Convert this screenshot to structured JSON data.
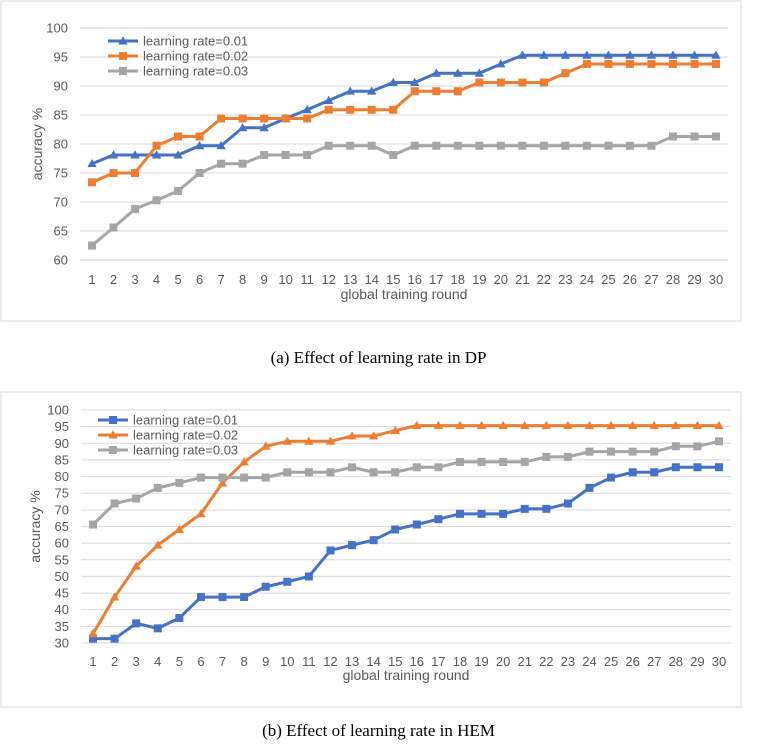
{
  "chart_data": [
    {
      "id": "a",
      "type": "line",
      "caption": "(a)  Effect of learning rate in DP",
      "xlabel": "global training round",
      "ylabel": "accuracy %",
      "ylim": [
        60,
        100
      ],
      "yticks": [
        60,
        65,
        70,
        75,
        80,
        85,
        90,
        95,
        100
      ],
      "categories": [
        "1",
        "2",
        "3",
        "4",
        "5",
        "6",
        "7",
        "8",
        "9",
        "10",
        "11",
        "12",
        "13",
        "14",
        "15",
        "16",
        "17",
        "18",
        "19",
        "20",
        "21",
        "22",
        "23",
        "24",
        "25",
        "26",
        "27",
        "28",
        "29",
        "30"
      ],
      "legend_position": "top-left",
      "grid": "horizontal",
      "series": [
        {
          "name": "learning rate=0.01",
          "color": "#4472C4",
          "marker": "triangle",
          "values": [
            76.6,
            78.1,
            78.1,
            78.1,
            78.1,
            79.7,
            79.7,
            82.8,
            82.8,
            84.4,
            85.9,
            87.5,
            89.1,
            89.1,
            90.6,
            90.6,
            92.2,
            92.2,
            92.2,
            93.8,
            95.3,
            95.3,
            95.3,
            95.3,
            95.3,
            95.3,
            95.3,
            95.3,
            95.3,
            95.3
          ]
        },
        {
          "name": "learning rate=0.02",
          "color": "#ED7D31",
          "marker": "square",
          "values": [
            73.4,
            75.0,
            75.0,
            79.7,
            81.3,
            81.3,
            84.4,
            84.4,
            84.4,
            84.4,
            84.4,
            85.9,
            85.9,
            85.9,
            85.9,
            89.1,
            89.1,
            89.1,
            90.6,
            90.6,
            90.6,
            90.6,
            92.2,
            93.8,
            93.8,
            93.8,
            93.8,
            93.8,
            93.8,
            93.8
          ]
        },
        {
          "name": "learning rate=0.03",
          "color": "#A5A5A5",
          "marker": "square",
          "values": [
            62.5,
            65.6,
            68.8,
            70.3,
            71.9,
            75.0,
            76.6,
            76.6,
            78.1,
            78.1,
            78.1,
            79.7,
            79.7,
            79.7,
            78.1,
            79.7,
            79.7,
            79.7,
            79.7,
            79.7,
            79.7,
            79.7,
            79.7,
            79.7,
            79.7,
            79.7,
            79.7,
            81.3,
            81.3,
            81.3
          ]
        }
      ]
    },
    {
      "id": "b",
      "type": "line",
      "caption": "(b) Effect of learning rate in HEM",
      "xlabel": "global training  round",
      "ylabel": "accuracy %",
      "ylim": [
        30,
        100
      ],
      "yticks": [
        30,
        35,
        40,
        45,
        50,
        55,
        60,
        65,
        70,
        75,
        80,
        85,
        90,
        95,
        100
      ],
      "categories": [
        "1",
        "2",
        "3",
        "4",
        "5",
        "6",
        "7",
        "8",
        "9",
        "10",
        "11",
        "12",
        "13",
        "14",
        "15",
        "16",
        "17",
        "18",
        "19",
        "20",
        "21",
        "22",
        "23",
        "24",
        "25",
        "26",
        "27",
        "28",
        "29",
        "30"
      ],
      "legend_position": "top-left",
      "grid": "horizontal",
      "series": [
        {
          "name": "learning rate=0.01",
          "color": "#4472C4",
          "marker": "square",
          "values": [
            31.3,
            31.3,
            35.9,
            34.4,
            37.5,
            43.8,
            43.8,
            43.8,
            46.9,
            48.4,
            50.0,
            57.8,
            59.4,
            60.9,
            64.1,
            65.6,
            67.2,
            68.8,
            68.8,
            68.8,
            70.3,
            70.3,
            71.9,
            76.6,
            79.7,
            81.3,
            81.3,
            82.8,
            82.8,
            82.8
          ]
        },
        {
          "name": "learning rate=0.02",
          "color": "#ED7D31",
          "marker": "triangle",
          "values": [
            32.8,
            43.8,
            53.1,
            59.4,
            64.1,
            68.8,
            78.1,
            84.4,
            89.1,
            90.6,
            90.6,
            90.6,
            92.2,
            92.2,
            93.8,
            95.3,
            95.3,
            95.3,
            95.3,
            95.3,
            95.3,
            95.3,
            95.3,
            95.3,
            95.3,
            95.3,
            95.3,
            95.3,
            95.3,
            95.3
          ]
        },
        {
          "name": "learning rate=0.03",
          "color": "#A5A5A5",
          "marker": "square",
          "values": [
            65.6,
            71.9,
            73.4,
            76.6,
            78.1,
            79.7,
            79.7,
            79.7,
            79.7,
            81.3,
            81.3,
            81.3,
            82.8,
            81.3,
            81.3,
            82.8,
            82.8,
            84.4,
            84.4,
            84.4,
            84.4,
            85.9,
            85.9,
            87.5,
            87.5,
            87.5,
            87.5,
            89.1,
            89.1,
            90.6
          ]
        }
      ]
    }
  ]
}
